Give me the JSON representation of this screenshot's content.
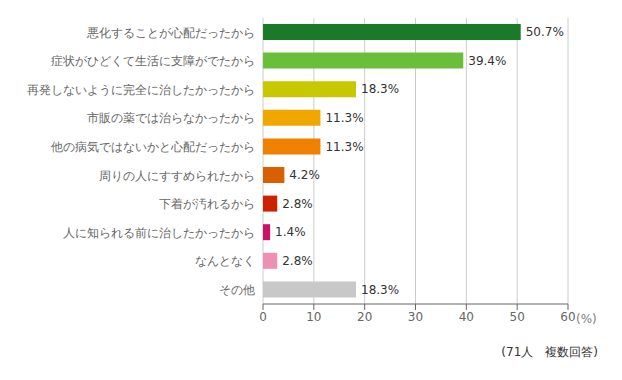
{
  "chart_data": {
    "type": "bar",
    "orientation": "horizontal",
    "categories": [
      "悪化することが心配だったから",
      "症状がひどくて生活に支障がでたから",
      "再発しないように完全に治したかったから",
      "市販の薬では治らなかったから",
      "他の病気ではないかと心配だったから",
      "周りの人にすすめられたから",
      "下着が汚れるから",
      "人に知られる前に治したかったから",
      "なんとなく",
      "その他"
    ],
    "values": [
      50.7,
      39.4,
      18.3,
      11.3,
      11.3,
      4.2,
      2.8,
      1.4,
      2.8,
      18.3
    ],
    "value_labels": [
      "50.7%",
      "39.4%",
      "18.3%",
      "11.3%",
      "11.3%",
      "4.2%",
      "2.8%",
      "1.4%",
      "2.8%",
      "18.3%"
    ],
    "data_labels": true,
    "colors": [
      "#1a7a2a",
      "#6abf3a",
      "#c8c800",
      "#f0a800",
      "#f08000",
      "#d86000",
      "#cc2200",
      "#cc1166",
      "#f090b0",
      "#c8c8c8"
    ],
    "xlim": [
      0,
      60
    ],
    "xticks": [
      0,
      10,
      20,
      30,
      40,
      50,
      60
    ],
    "xlabel": "(%)",
    "annotations": [
      "(71人　複数回答)"
    ],
    "grid": true
  }
}
